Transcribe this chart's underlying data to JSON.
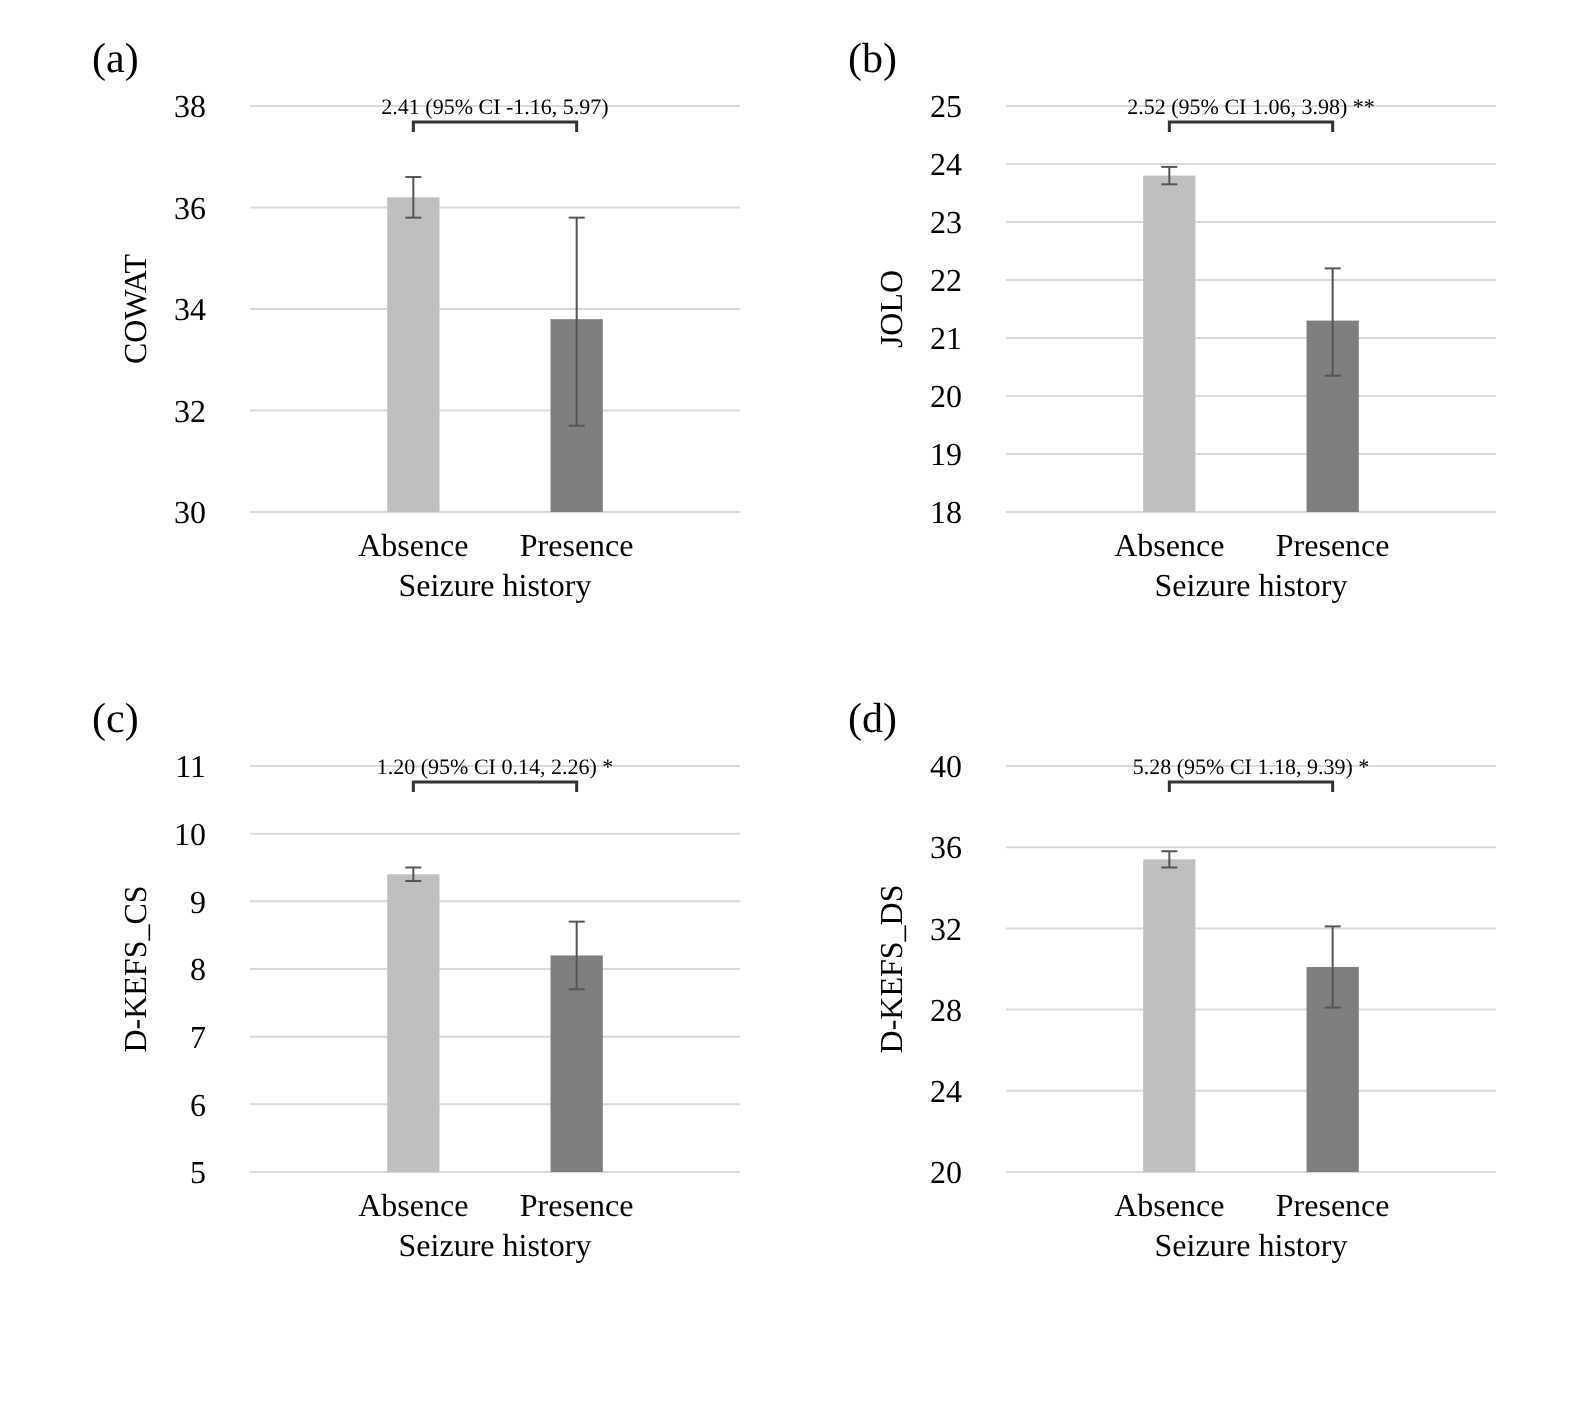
{
  "chart_data": [
    {
      "type": "bar",
      "title": "(a)",
      "categories": [
        "Absence",
        "Presence"
      ],
      "values": [
        36.2,
        33.8
      ],
      "colors": [
        "#bfbfbf",
        "#7f7f7f"
      ],
      "errors": [
        [
          35.8,
          36.6
        ],
        [
          31.7,
          35.8
        ]
      ],
      "xlabel": "Seizure history",
      "ylabel": "COWAT",
      "ylim": [
        30,
        38
      ],
      "yticks": [
        30,
        32,
        34,
        36,
        38
      ],
      "grid": "y",
      "annotations": [
        "2.41 (95% CI -1.16, 5.97)"
      ]
    },
    {
      "type": "bar",
      "title": "(b)",
      "categories": [
        "Absence",
        "Presence"
      ],
      "values": [
        23.8,
        21.3
      ],
      "colors": [
        "#bfbfbf",
        "#7f7f7f"
      ],
      "errors": [
        [
          23.65,
          23.95
        ],
        [
          20.35,
          22.2
        ]
      ],
      "xlabel": "Seizure history",
      "ylabel": "JOLO",
      "ylim": [
        18,
        25
      ],
      "yticks": [
        18,
        19,
        20,
        21,
        22,
        23,
        24,
        25
      ],
      "grid": "y",
      "annotations": [
        "2.52 (95% CI 1.06, 3.98) **"
      ]
    },
    {
      "type": "bar",
      "title": "(c)",
      "categories": [
        "Absence",
        "Presence"
      ],
      "values": [
        9.4,
        8.2
      ],
      "colors": [
        "#bfbfbf",
        "#7f7f7f"
      ],
      "errors": [
        [
          9.3,
          9.5
        ],
        [
          7.7,
          8.7
        ]
      ],
      "xlabel": "Seizure history",
      "ylabel": "D-KEFS_CS",
      "ylim": [
        5,
        11
      ],
      "yticks": [
        5,
        6,
        7,
        8,
        9,
        10,
        11
      ],
      "grid": "y",
      "annotations": [
        "1.20 (95% CI 0.14, 2.26) *"
      ]
    },
    {
      "type": "bar",
      "title": "(d)",
      "categories": [
        "Absence",
        "Presence"
      ],
      "values": [
        35.4,
        30.1
      ],
      "colors": [
        "#bfbfbf",
        "#7f7f7f"
      ],
      "errors": [
        [
          35.0,
          35.8
        ],
        [
          28.1,
          32.1
        ]
      ],
      "xlabel": "Seizure history",
      "ylabel": "D-KEFS_DS",
      "ylim": [
        20,
        40
      ],
      "yticks": [
        20,
        24,
        28,
        32,
        36,
        40
      ],
      "grid": "y",
      "annotations": [
        "5.28 (95% CI 1.18, 9.39) *"
      ]
    }
  ]
}
